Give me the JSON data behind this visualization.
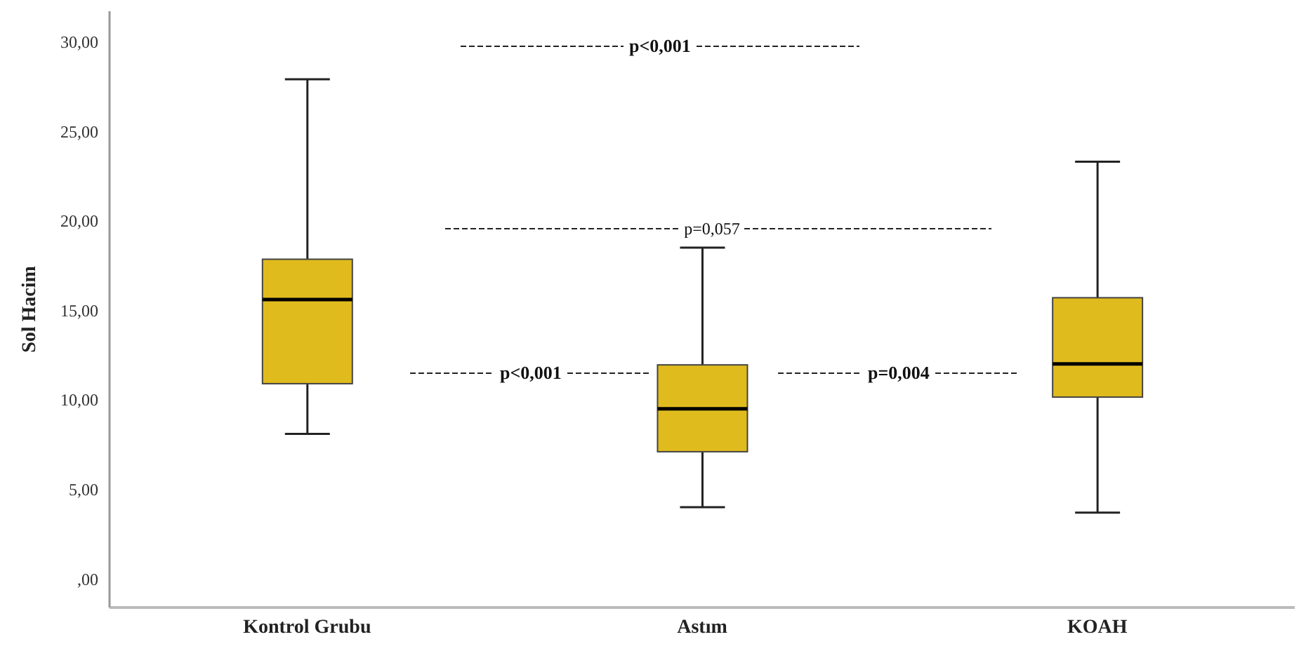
{
  "chart_data": {
    "type": "box",
    "ylabel": "Sol Hacim",
    "categories": [
      "Kontrol Grubu",
      "Astım",
      "KOAH"
    ],
    "color": "#e0bb1e",
    "boxes": [
      {
        "low": 8.1,
        "q1": 10.9,
        "median": 15.6,
        "q3": 17.85,
        "high": 27.9
      },
      {
        "low": 4.0,
        "q1": 7.1,
        "median": 9.5,
        "q3": 11.95,
        "high": 18.5
      },
      {
        "low": 3.7,
        "q1": 10.15,
        "median": 12.0,
        "q3": 15.7,
        "high": 23.3
      }
    ],
    "ylim": [
      -1.6,
      31.7
    ],
    "yticks": [
      {
        "value": 0,
        "label": ",00"
      },
      {
        "value": 5,
        "label": "5,00"
      },
      {
        "value": 10,
        "label": "10,00"
      },
      {
        "value": 15,
        "label": "15,00"
      },
      {
        "value": 20,
        "label": "20,00"
      },
      {
        "value": 25,
        "label": "25,00"
      },
      {
        "value": 30,
        "label": "30,00"
      }
    ],
    "annotations": [
      "p<0,001",
      "p=0,057",
      "p<0,001",
      "p=0,004"
    ]
  }
}
